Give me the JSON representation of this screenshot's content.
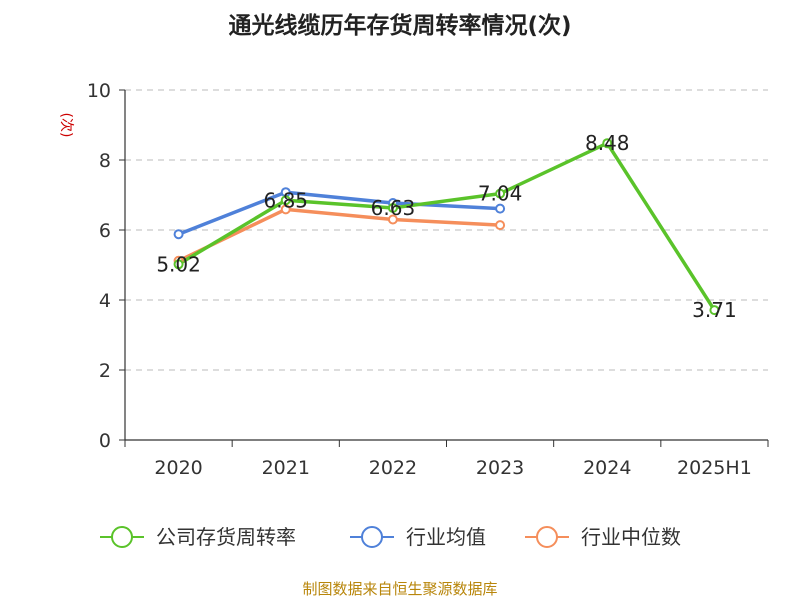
{
  "chart_data": {
    "type": "line",
    "title": "通光线缆历年存货周转率情况(次)",
    "ylabel": "(次)",
    "xlabel": "",
    "categories": [
      "2020",
      "2021",
      "2022",
      "2023",
      "2024",
      "2025H1"
    ],
    "ylim": [
      0,
      10
    ],
    "yticks": [
      0,
      2,
      4,
      6,
      8,
      10
    ],
    "grid": true,
    "legend_position": "bottom",
    "series": [
      {
        "name": "公司存货周转率",
        "color": "#5ac32a",
        "values": [
          5.02,
          6.85,
          6.63,
          7.04,
          8.48,
          3.71
        ],
        "labels": [
          "5.02",
          "6.85",
          "6.63",
          "7.04",
          "8.48",
          "3.71"
        ]
      },
      {
        "name": "行业均值",
        "color": "#4f81d9",
        "values": [
          5.88,
          7.08,
          6.77,
          6.61,
          null,
          null
        ]
      },
      {
        "name": "行业中位数",
        "color": "#f58e5b",
        "values": [
          5.12,
          6.59,
          6.3,
          6.14,
          null,
          null
        ]
      }
    ]
  },
  "source": "制图数据来自恒生聚源数据库"
}
